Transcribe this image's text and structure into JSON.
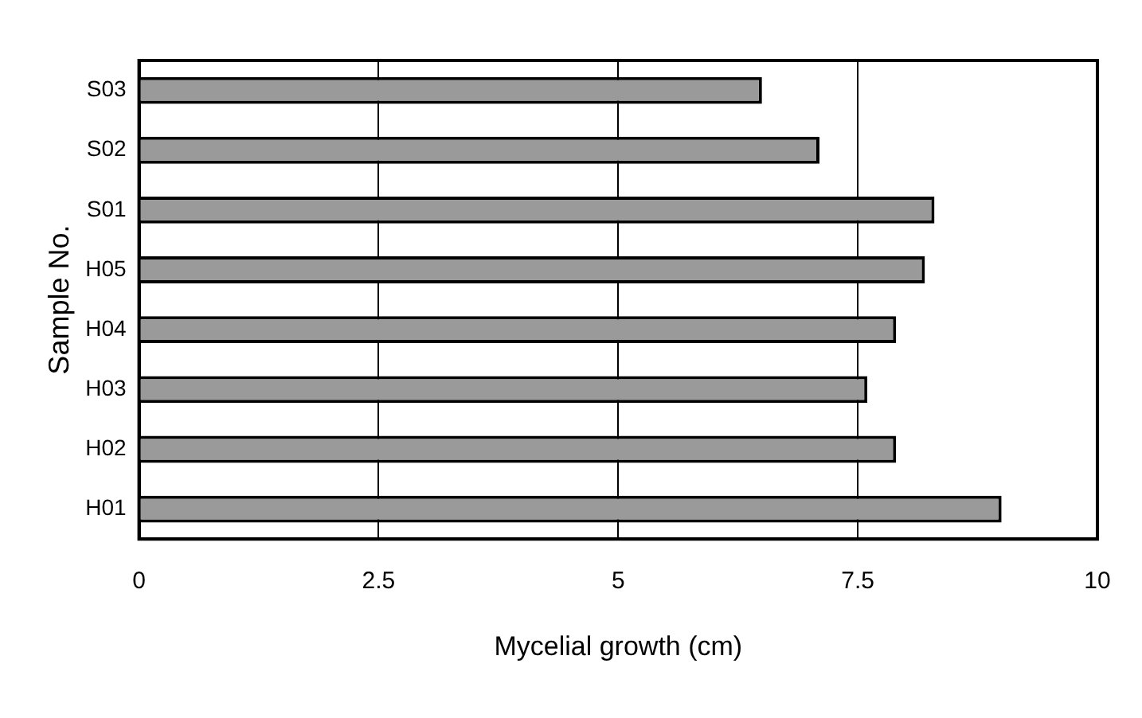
{
  "chart_data": {
    "type": "bar",
    "orientation": "horizontal",
    "xlabel": "Mycelial growth (cm)",
    "ylabel": "Sample No.",
    "categories": [
      "S03",
      "S02",
      "S01",
      "H05",
      "H04",
      "H03",
      "H02",
      "H01"
    ],
    "values": [
      6.5,
      7.1,
      8.3,
      8.2,
      7.9,
      7.6,
      7.9,
      9.0
    ],
    "color": "#9a9a9a",
    "xlim": [
      0,
      10
    ],
    "xticks": [
      0,
      2.5,
      5,
      7.5,
      10
    ],
    "grid": "x",
    "legend": false
  }
}
